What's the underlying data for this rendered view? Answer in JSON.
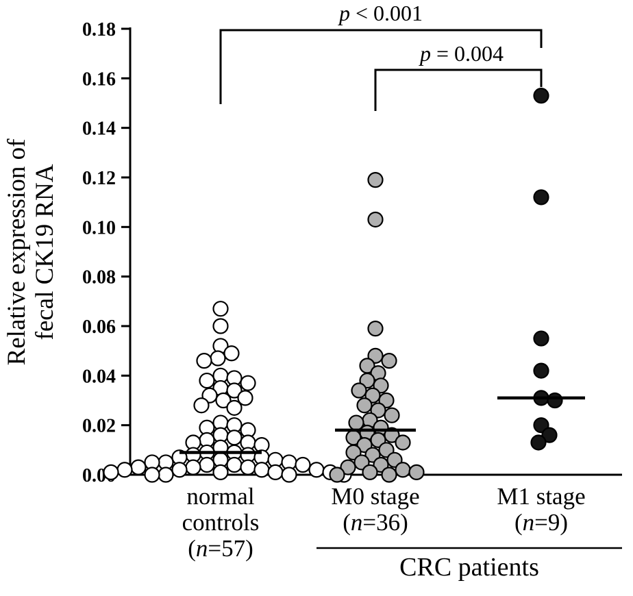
{
  "figure_colors": {
    "background": "#ffffff",
    "axis": "#000000",
    "normal_fill": "#ffffff",
    "m0_fill": "#b0b0b0",
    "m1_fill": "#161616",
    "marker_stroke": "#000000"
  },
  "chart_data": {
    "type": "scatter",
    "subtype": "dot-plot-beeswarm",
    "title": "",
    "xlabel": "",
    "ylabel": "Relative expression of fecal CK19 RNA",
    "ylabel_lines": [
      "Relative expression of",
      "fecal CK19 RNA"
    ],
    "ylim": [
      0,
      0.18
    ],
    "ytick_step": 0.02,
    "ytick_labels": [
      "0.00",
      "0.02",
      "0.04",
      "0.06",
      "0.08",
      "0.10",
      "0.12",
      "0.14",
      "0.16",
      "0.18"
    ],
    "grid": false,
    "legend": "none",
    "groups": [
      {
        "label": "normal controls",
        "label_lines": [
          "normal",
          "controls"
        ],
        "n": 57,
        "marker_fill": "#ffffff",
        "median": 0.009,
        "values": [
          0.067,
          0.06,
          0.052,
          0.049,
          0.047,
          0.046,
          0.04,
          0.039,
          0.038,
          0.037,
          0.035,
          0.034,
          0.032,
          0.031,
          0.03,
          0.028,
          0.027,
          0.021,
          0.02,
          0.019,
          0.018,
          0.016,
          0.015,
          0.014,
          0.013,
          0.013,
          0.012,
          0.011,
          0.009,
          0.009,
          0.008,
          0.008,
          0.007,
          0.007,
          0.006,
          0.006,
          0.005,
          0.005,
          0.005,
          0.004,
          0.004,
          0.004,
          0.003,
          0.003,
          0.003,
          0.002,
          0.002,
          0.002,
          0.002,
          0.001,
          0.001,
          0.001,
          0.001,
          0.0,
          0.0,
          0.0,
          0.0
        ]
      },
      {
        "label": "M0 stage",
        "label_lines": [
          "M0 stage"
        ],
        "n": 36,
        "marker_fill": "#b0b0b0",
        "median": 0.018,
        "values": [
          0.119,
          0.103,
          0.059,
          0.048,
          0.046,
          0.044,
          0.041,
          0.038,
          0.036,
          0.034,
          0.032,
          0.03,
          0.028,
          0.026,
          0.024,
          0.022,
          0.021,
          0.019,
          0.017,
          0.016,
          0.015,
          0.014,
          0.013,
          0.012,
          0.01,
          0.009,
          0.008,
          0.006,
          0.005,
          0.004,
          0.003,
          0.002,
          0.001,
          0.001,
          0.0,
          0.0
        ]
      },
      {
        "label": "M1 stage",
        "label_lines": [
          "M1 stage"
        ],
        "n": 9,
        "marker_fill": "#161616",
        "median": 0.031,
        "values": [
          0.153,
          0.112,
          0.055,
          0.042,
          0.031,
          0.03,
          0.02,
          0.016,
          0.013
        ]
      }
    ],
    "annotations": [
      {
        "text": "p < 0.001",
        "from": "normal controls",
        "to": "M1 stage"
      },
      {
        "text": "p = 0.004",
        "from": "M0 stage",
        "to": "M1 stage"
      }
    ],
    "group_bracket": {
      "text": "CRC patients",
      "spans": [
        "M0 stage",
        "M1 stage"
      ]
    }
  }
}
